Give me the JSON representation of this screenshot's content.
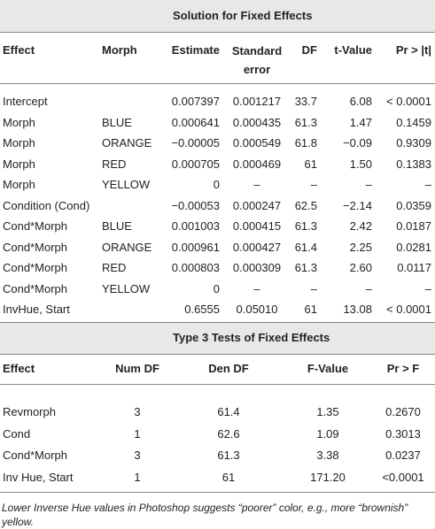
{
  "table1": {
    "title": "Solution for Fixed Effects",
    "header": [
      "Effect",
      "Morph",
      "Estimate",
      "Standard error",
      "DF",
      "t-Value",
      "Pr > |t|"
    ],
    "rows": [
      [
        "Intercept",
        "",
        "0.007397",
        "0.001217",
        "33.7",
        "6.08",
        "< 0.0001"
      ],
      [
        "Morph",
        "BLUE",
        "0.000641",
        "0.000435",
        "61.3",
        "1.47",
        "0.1459"
      ],
      [
        "Morph",
        "ORANGE",
        "−0.00005",
        "0.000549",
        "61.8",
        "−0.09",
        "0.9309"
      ],
      [
        "Morph",
        "RED",
        "0.000705",
        "0.000469",
        "61",
        "1.50",
        "0.1383"
      ],
      [
        "Morph",
        "YELLOW",
        "0",
        "–",
        "–",
        "–",
        "–"
      ],
      [
        "Condition (Cond)",
        "",
        "−0.00053",
        "0.000247",
        "62.5",
        "−2.14",
        "0.0359"
      ],
      [
        "Cond*Morph",
        "BLUE",
        "0.001003",
        "0.000415",
        "61.3",
        "2.42",
        "0.0187"
      ],
      [
        "Cond*Morph",
        "ORANGE",
        "0.000961",
        "0.000427",
        "61.4",
        "2.25",
        "0.0281"
      ],
      [
        "Cond*Morph",
        "RED",
        "0.000803",
        "0.000309",
        "61.3",
        "2.60",
        "0.0117"
      ],
      [
        "Cond*Morph",
        "YELLOW",
        "0",
        "–",
        "–",
        "–",
        "–"
      ],
      [
        "InvHue, Start",
        "",
        "0.6555",
        "0.05010",
        "61",
        "13.08",
        "< 0.0001"
      ]
    ]
  },
  "table2": {
    "title": "Type 3 Tests of Fixed Effects",
    "header": [
      "Effect",
      "Num DF",
      "Den DF",
      "F-Value",
      "Pr > F"
    ],
    "rows": [
      [
        "Revmorph",
        "3",
        "61.4",
        "1.35",
        "0.2670"
      ],
      [
        "Cond",
        "1",
        "62.6",
        "1.09",
        "0.3013"
      ],
      [
        "Cond*Morph",
        "3",
        "61.3",
        "3.38",
        "0.0237"
      ],
      [
        "Inv Hue, Start",
        "1",
        "61",
        "171.20",
        "<0.0001"
      ]
    ]
  },
  "footnote": "Lower Inverse Hue values in Photoshop suggests “poorer” color, e.g., more “brownish” yellow."
}
